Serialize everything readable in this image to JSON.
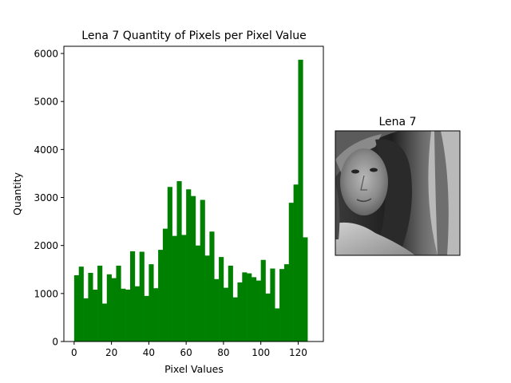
{
  "chart_data": [
    {
      "type": "bar",
      "title": "Lena 7 Quantity of Pixels per Pixel Value",
      "xlabel": "Pixel Values",
      "ylabel": "Quantity",
      "xlim": [
        -5.5,
        133.5
      ],
      "ylim": [
        0,
        6150
      ],
      "xticks": [
        0,
        20,
        40,
        60,
        80,
        100,
        120
      ],
      "yticks": [
        0,
        1000,
        2000,
        3000,
        4000,
        5000,
        6000
      ],
      "bin_width": 2.5,
      "bin_start": 0,
      "bar_color": "#008000",
      "grid": false,
      "values": [
        1380,
        1560,
        900,
        1430,
        1080,
        1580,
        790,
        1400,
        1320,
        1580,
        1100,
        1080,
        1880,
        1150,
        1870,
        950,
        1610,
        1110,
        1910,
        2350,
        3220,
        2200,
        3340,
        2220,
        3170,
        3030,
        2000,
        2950,
        1790,
        2290,
        1300,
        1760,
        1120,
        1580,
        920,
        1230,
        1440,
        1420,
        1340,
        1270,
        1700,
        1000,
        1520,
        690,
        1510,
        1610,
        2890,
        3270,
        5870,
        2170
      ]
    },
    {
      "type": "image",
      "title": "Lena 7"
    }
  ]
}
